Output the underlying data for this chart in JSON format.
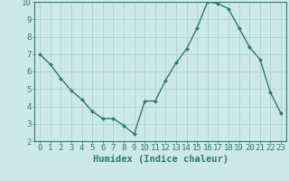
{
  "x": [
    0,
    1,
    2,
    3,
    4,
    5,
    6,
    7,
    8,
    9,
    10,
    11,
    12,
    13,
    14,
    15,
    16,
    17,
    18,
    19,
    20,
    21,
    22,
    23
  ],
  "y": [
    7.0,
    6.4,
    5.6,
    4.9,
    4.4,
    3.7,
    3.3,
    3.3,
    2.9,
    2.4,
    4.3,
    4.3,
    5.5,
    6.5,
    7.3,
    8.5,
    10.0,
    9.9,
    9.6,
    8.5,
    7.4,
    6.7,
    4.8,
    3.6
  ],
  "line_color": "#2e7d6e",
  "marker": "D",
  "marker_size": 2.0,
  "line_width": 1.0,
  "bg_color": "#cce8e8",
  "grid_color": "#aad4d4",
  "xlabel": "Humidex (Indice chaleur)",
  "xlim": [
    -0.5,
    23.5
  ],
  "ylim": [
    2,
    10
  ],
  "xticks": [
    0,
    1,
    2,
    3,
    4,
    5,
    6,
    7,
    8,
    9,
    10,
    11,
    12,
    13,
    14,
    15,
    16,
    17,
    18,
    19,
    20,
    21,
    22,
    23
  ],
  "yticks": [
    2,
    3,
    4,
    5,
    6,
    7,
    8,
    9,
    10
  ],
  "tick_color": "#2e7d6e",
  "xlabel_fontsize": 7.5,
  "tick_fontsize": 6.5
}
